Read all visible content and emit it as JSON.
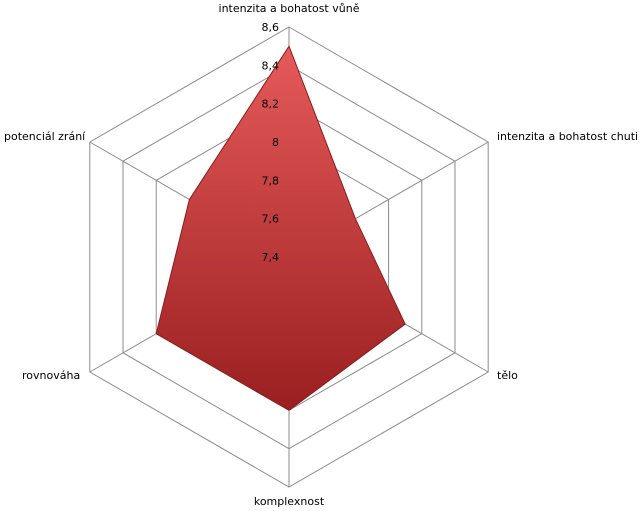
{
  "chart_data": {
    "type": "radar",
    "categories": [
      "intenzita a bohatost vůně",
      "intenzita a bohatost chuti",
      "tělo",
      "komplexnost",
      "rovnováha",
      "potenciál zrání"
    ],
    "values": [
      8.5,
      7.8,
      8.1,
      8.2,
      8.2,
      8.0
    ],
    "color": "#c0393b",
    "rlim": [
      7.4,
      8.6
    ],
    "rticks": [
      {
        "value": 7.4,
        "label": "7,4"
      },
      {
        "value": 7.6,
        "label": "7,6"
      },
      {
        "value": 7.8,
        "label": "7,8"
      },
      8,
      {
        "value": 8.2,
        "label": "8,2"
      },
      {
        "value": 8.4,
        "label": "8,4"
      },
      {
        "value": 8.6,
        "label": "8,6"
      }
    ],
    "grid": true
  }
}
